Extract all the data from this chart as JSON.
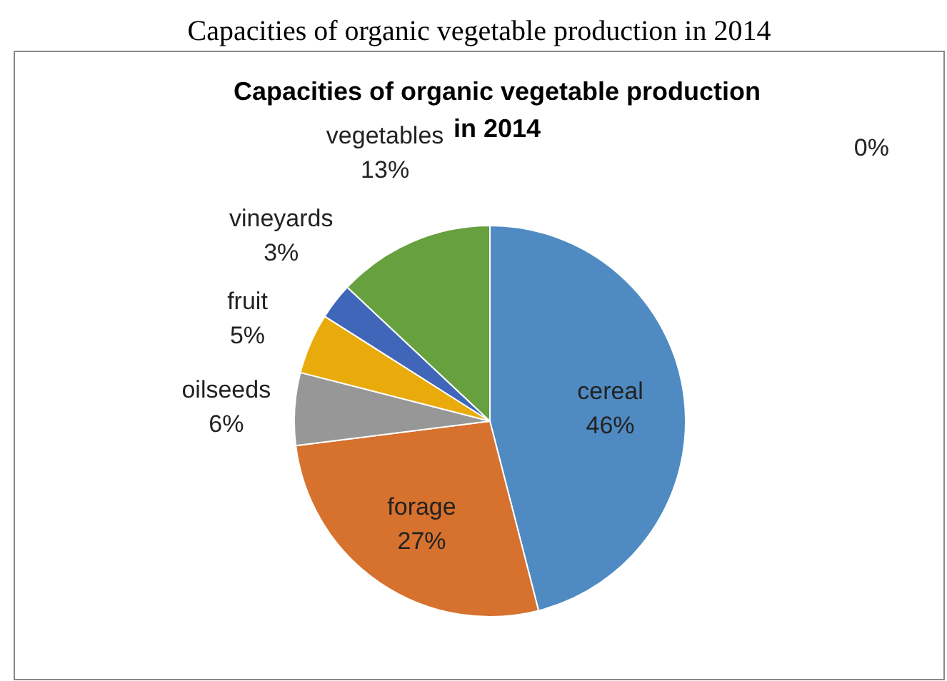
{
  "chart_data": {
    "type": "pie",
    "title": "Capacities of organic vegetable production in 2014",
    "annotations": [
      "Capacities of organic vegetable production in 2014"
    ],
    "categories": [
      "cereal",
      "forage",
      "oilseeds",
      "fruit",
      "vineyards",
      "vegetables",
      null
    ],
    "values": [
      46,
      27,
      6,
      5,
      3,
      13,
      0
    ],
    "colors": [
      "#4f8bc2",
      "#d7712e",
      "#979797",
      "#e8ab0b",
      "#3f66b8",
      "#67a03f",
      "#264478"
    ],
    "value_labels": [
      "46%",
      "27%",
      "6%",
      "5%",
      "3%",
      "13%",
      "0%"
    ]
  }
}
